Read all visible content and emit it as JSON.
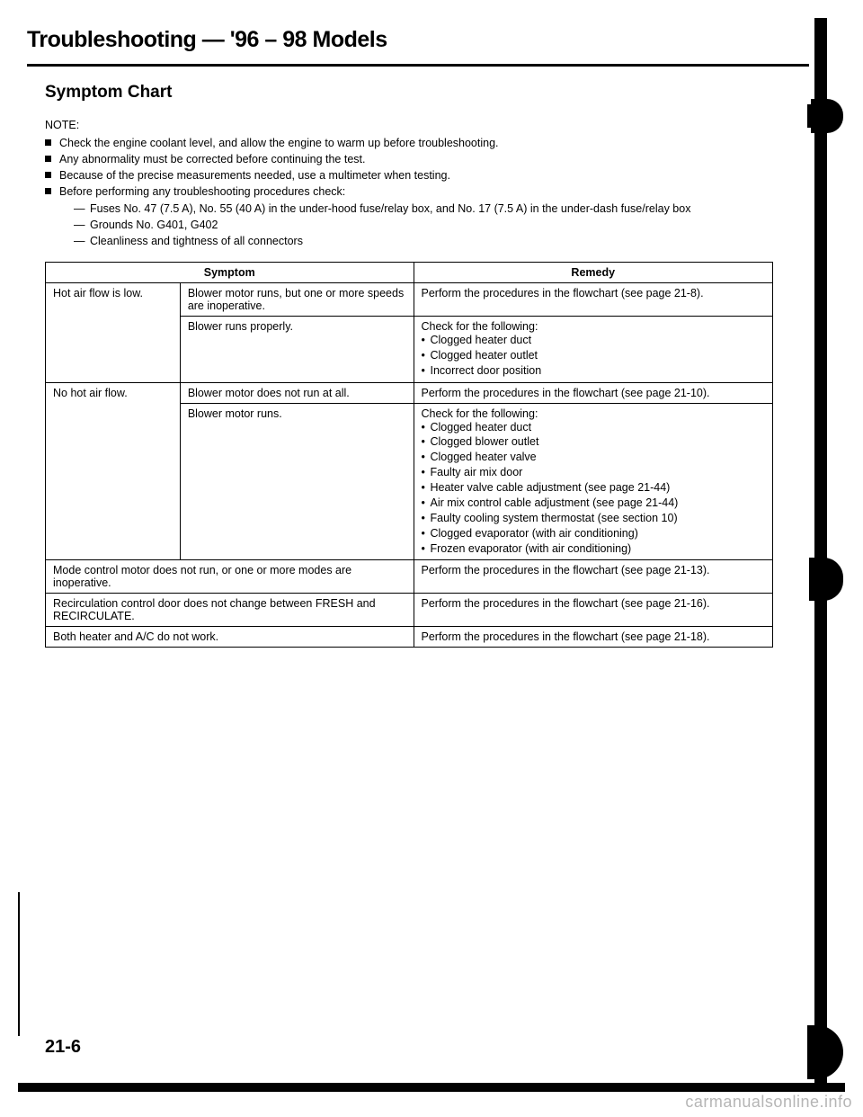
{
  "page_title": "Troubleshooting — '96 – 98 Models",
  "section_title": "Symptom Chart",
  "note_label": "NOTE:",
  "note_bullets": [
    "Check the engine coolant level, and allow the engine to warm up before troubleshooting.",
    "Any abnormality must be corrected before continuing the test.",
    "Because of the precise measurements needed, use a multimeter when testing.",
    "Before performing any troubleshooting procedures check:"
  ],
  "note_sub_dash": [
    "Fuses No. 47 (7.5 A), No. 55 (40 A) in the under-hood fuse/relay box, and No. 17 (7.5 A) in the under-dash fuse/relay box",
    "Grounds No. G401, G402",
    "Cleanliness and tightness of all connectors"
  ],
  "table": {
    "headers": {
      "symptom": "Symptom",
      "remedy": "Remedy"
    },
    "rows": [
      {
        "symptom_main": "Hot air flow is low.",
        "symptom_sub": "Blower motor runs, but one or more speeds are inoperative.",
        "remedy_text": "Perform the procedures in the flowchart (see page 21-8).",
        "remedy_items": []
      },
      {
        "symptom_main": "",
        "symptom_sub": "Blower runs properly.",
        "remedy_text": "Check for the following:",
        "remedy_items": [
          "Clogged heater duct",
          "Clogged heater outlet",
          "Incorrect door position"
        ]
      },
      {
        "symptom_main": "No hot air flow.",
        "symptom_sub": "Blower motor does not run at all.",
        "remedy_text": "Perform the procedures in the flowchart (see page 21-10).",
        "remedy_items": []
      },
      {
        "symptom_main": "",
        "symptom_sub": "Blower motor runs.",
        "remedy_text": "Check for the following:",
        "remedy_items": [
          "Clogged heater duct",
          "Clogged blower outlet",
          "Clogged heater valve",
          "Faulty air mix door",
          "Heater valve cable adjustment (see page 21-44)",
          "Air mix control cable adjustment (see page 21-44)",
          "Faulty cooling system thermostat (see section 10)",
          "Clogged evaporator (with air conditioning)",
          "Frozen evaporator (with air conditioning)"
        ]
      },
      {
        "symptom_span": "Mode control motor does not run, or one or more modes are inoperative.",
        "remedy_text": "Perform the procedures in the flowchart (see page 21-13).",
        "remedy_items": []
      },
      {
        "symptom_span": "Recirculation control door does not change between FRESH and RECIRCULATE.",
        "remedy_text": "Perform the procedures in the flowchart (see page 21-16).",
        "remedy_items": []
      },
      {
        "symptom_span": "Both heater and A/C do not work.",
        "remedy_text": "Perform the procedures in the flowchart (see page 21-18).",
        "remedy_items": []
      }
    ]
  },
  "page_number": "21-6",
  "watermark": "carmanualsonline.info"
}
